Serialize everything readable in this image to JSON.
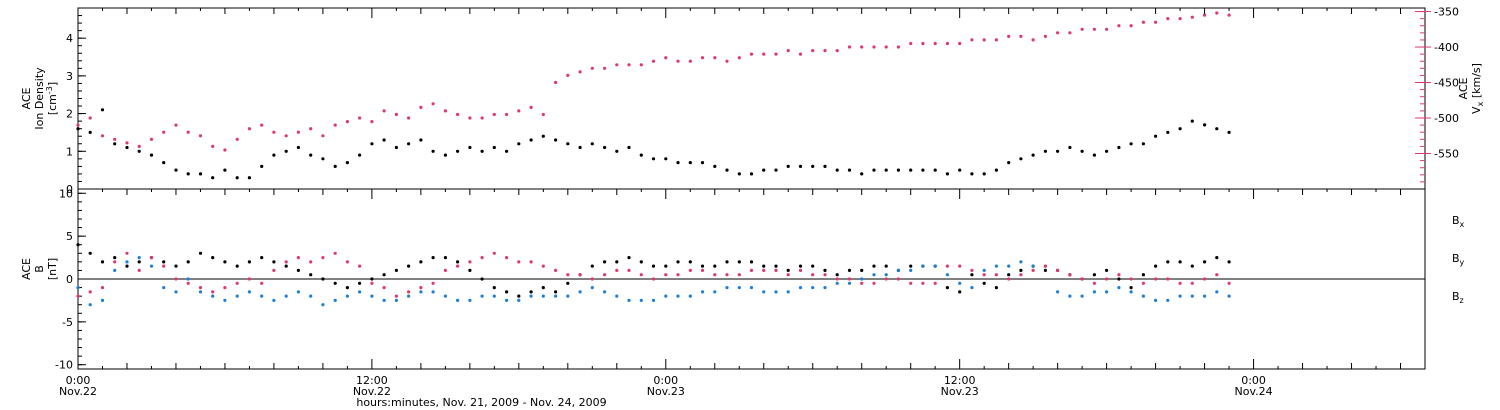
{
  "chart_data": [
    {
      "type": "scatter",
      "panel": "top",
      "left_axis": {
        "title_lines": [
          "ACE",
          "Ion Density"
        ],
        "unit": "cm",
        "unit_exp": "-3",
        "ylim": [
          0,
          4.8
        ],
        "ticks": [
          "0",
          "1",
          "2",
          "3",
          "4"
        ],
        "color": "#000000"
      },
      "right_axis": {
        "title": "ACE",
        "symbol": "V",
        "symbol_sub": "x",
        "unit": "km/s",
        "ylim": [
          -600,
          -345
        ],
        "ticks": [
          "-350",
          "-400",
          "-450",
          "-500",
          "-550"
        ],
        "color": "#e0386a"
      },
      "series": [
        {
          "axis": "left",
          "color": "#000000",
          "x": [
            0,
            0.5,
            1,
            1.5,
            2,
            2.5,
            3,
            3.5,
            4,
            4.5,
            5,
            5.5,
            6,
            6.5,
            7,
            7.5,
            8,
            8.5,
            9,
            9.5,
            10,
            10.5,
            11,
            11.5,
            12,
            12.5,
            13,
            13.5,
            14,
            14.5,
            15,
            15.5,
            16,
            16.5,
            17,
            17.5,
            18,
            18.5,
            19,
            19.5,
            20,
            20.5,
            21,
            21.5,
            22,
            22.5,
            23,
            23.5,
            24,
            24.5,
            25,
            25.5,
            26,
            26.5,
            27,
            27.5,
            28,
            28.5,
            29,
            29.5,
            30,
            30.5,
            31,
            31.5,
            32,
            32.5,
            33,
            33.5,
            34,
            34.5,
            35,
            35.5,
            36,
            36.5,
            37,
            37.5,
            38,
            38.5,
            39,
            39.5,
            40,
            40.5,
            41,
            41.5,
            42,
            42.5,
            43,
            43.5,
            44,
            44.5,
            45,
            45.5,
            46,
            46.5,
            47
          ],
          "y": [
            1.6,
            1.5,
            2.1,
            1.2,
            1.1,
            1.0,
            0.9,
            0.7,
            0.5,
            0.4,
            0.4,
            0.3,
            0.5,
            0.3,
            0.3,
            0.6,
            0.9,
            1.0,
            1.1,
            0.9,
            0.8,
            0.6,
            0.7,
            0.9,
            1.2,
            1.3,
            1.1,
            1.2,
            1.3,
            1.0,
            0.9,
            1.0,
            1.1,
            1.0,
            1.1,
            1.0,
            1.2,
            1.3,
            1.4,
            1.3,
            1.2,
            1.1,
            1.2,
            1.1,
            1.0,
            1.1,
            0.9,
            0.8,
            0.8,
            0.7,
            0.7,
            0.7,
            0.6,
            0.5,
            0.4,
            0.4,
            0.5,
            0.5,
            0.6,
            0.6,
            0.6,
            0.6,
            0.5,
            0.5,
            0.4,
            0.5,
            0.5,
            0.5,
            0.5,
            0.5,
            0.5,
            0.4,
            0.5,
            0.4,
            0.4,
            0.5,
            0.7,
            0.8,
            0.9,
            1.0,
            1.0,
            1.1,
            1.0,
            0.9,
            1.0,
            1.1,
            1.2,
            1.2,
            1.4,
            1.5,
            1.6,
            1.8,
            1.7,
            1.6,
            1.5
          ]
        },
        {
          "axis": "right",
          "color": "#e0386a",
          "x": [
            0,
            0.5,
            1,
            1.5,
            2,
            2.5,
            3,
            3.5,
            4,
            4.5,
            5,
            5.5,
            6,
            6.5,
            7,
            7.5,
            8,
            8.5,
            9,
            9.5,
            10,
            10.5,
            11,
            11.5,
            12,
            12.5,
            13,
            13.5,
            14,
            14.5,
            15,
            15.5,
            16,
            16.5,
            17,
            17.5,
            18,
            18.5,
            19,
            19.5,
            20,
            20.5,
            21,
            21.5,
            22,
            22.5,
            23,
            23.5,
            24,
            24.5,
            25,
            25.5,
            26,
            26.5,
            27,
            27.5,
            28,
            28.5,
            29,
            29.5,
            30,
            30.5,
            31,
            31.5,
            32,
            32.5,
            33,
            33.5,
            34,
            34.5,
            35,
            35.5,
            36,
            36.5,
            37,
            37.5,
            38,
            38.5,
            39,
            39.5,
            40,
            40.5,
            41,
            41.5,
            42,
            42.5,
            43,
            43.5,
            44,
            44.5,
            45,
            45.5,
            46,
            46.5,
            47
          ],
          "y": [
            -510,
            -500,
            -525,
            -530,
            -535,
            -540,
            -530,
            -520,
            -510,
            -520,
            -525,
            -540,
            -545,
            -530,
            -515,
            -510,
            -520,
            -525,
            -520,
            -515,
            -525,
            -510,
            -505,
            -500,
            -505,
            -490,
            -495,
            -500,
            -485,
            -480,
            -490,
            -495,
            -500,
            -500,
            -495,
            -495,
            -490,
            -485,
            -495,
            -450,
            -440,
            -435,
            -430,
            -430,
            -425,
            -425,
            -425,
            -420,
            -415,
            -420,
            -420,
            -415,
            -415,
            -420,
            -415,
            -410,
            -410,
            -410,
            -405,
            -410,
            -405,
            -405,
            -405,
            -400,
            -400,
            -400,
            -400,
            -400,
            -395,
            -395,
            -395,
            -395,
            -395,
            -390,
            -390,
            -390,
            -385,
            -385,
            -390,
            -385,
            -380,
            -380,
            -375,
            -375,
            -375,
            -370,
            -370,
            -365,
            -365,
            -360,
            -360,
            -358,
            -355,
            -352,
            -355
          ]
        }
      ]
    },
    {
      "type": "scatter",
      "panel": "bottom",
      "left_axis": {
        "title_lines": [
          "ACE",
          "B"
        ],
        "unit": "nT",
        "ylim": [
          -10.5,
          10.5
        ],
        "ticks": [
          "10",
          "5",
          "0",
          "-5",
          "-10"
        ],
        "color": "#000000"
      },
      "xlabel": "hours:minutes, Nov. 21, 2009 - Nov. 24, 2009",
      "xlim": [
        0,
        55
      ],
      "x_ticks": [
        {
          "pos": 0,
          "time": "0:00",
          "day": "Nov.22"
        },
        {
          "pos": 12,
          "time": "12:00",
          "day": "Nov.22"
        },
        {
          "pos": 24,
          "time": "0:00",
          "day": "Nov.23"
        },
        {
          "pos": 36,
          "time": "12:00",
          "day": "Nov.23"
        },
        {
          "pos": 48,
          "time": "0:00",
          "day": "Nov.24"
        }
      ],
      "legend": [
        {
          "symbol": "B",
          "sub": "x",
          "color": "#000000"
        },
        {
          "symbol": "B",
          "sub": "y",
          "color": "#1e7fd6"
        },
        {
          "symbol": "B",
          "sub": "z",
          "color": "#e0386a"
        }
      ],
      "series": [
        {
          "name": "Bx",
          "color": "#000000",
          "x": [
            0,
            0.5,
            1,
            1.5,
            2,
            2.5,
            3,
            3.5,
            4,
            4.5,
            5,
            5.5,
            6,
            6.5,
            7,
            7.5,
            8,
            8.5,
            9,
            9.5,
            10,
            10.5,
            11,
            11.5,
            12,
            12.5,
            13,
            13.5,
            14,
            14.5,
            15,
            15.5,
            16,
            16.5,
            17,
            17.5,
            18,
            18.5,
            19,
            19.5,
            20,
            20.5,
            21,
            21.5,
            22,
            22.5,
            23,
            23.5,
            24,
            24.5,
            25,
            25.5,
            26,
            26.5,
            27,
            27.5,
            28,
            28.5,
            29,
            29.5,
            30,
            30.5,
            31,
            31.5,
            32,
            32.5,
            33,
            33.5,
            34,
            34.5,
            35,
            35.5,
            36,
            36.5,
            37,
            37.5,
            38,
            38.5,
            39,
            39.5,
            40,
            40.5,
            41,
            41.5,
            42,
            42.5,
            43,
            43.5,
            44,
            44.5,
            45,
            45.5,
            46,
            46.5,
            47
          ],
          "y": [
            4,
            3,
            2,
            2.5,
            1.5,
            2,
            2.5,
            2,
            1.5,
            2,
            3,
            2.5,
            2,
            1.5,
            2,
            2.5,
            2,
            1.5,
            1,
            0.5,
            0,
            -0.5,
            -1,
            -0.5,
            0,
            0.5,
            1,
            1.5,
            2,
            2.5,
            2.5,
            2,
            1,
            0,
            -1,
            -1.5,
            -2,
            -1.5,
            -1,
            -1.5,
            -0.5,
            0.5,
            1.5,
            2,
            2,
            2.5,
            2,
            1.5,
            1.5,
            2,
            2,
            1.5,
            1.5,
            2,
            2,
            2,
            1.5,
            1.5,
            1,
            1.5,
            1.5,
            1,
            0.5,
            1,
            1,
            1.5,
            1.5,
            1,
            1.5,
            1.5,
            1.5,
            -1,
            -1.5,
            0.5,
            -0.5,
            -1,
            0.5,
            1,
            1.5,
            1,
            1,
            0.5,
            0,
            0.5,
            1,
            0,
            -1,
            0.5,
            1.5,
            2,
            2,
            1.5,
            2,
            2.5,
            2
          ]
        },
        {
          "name": "By",
          "color": "#1e7fd6",
          "x": [
            0,
            0.5,
            1,
            1.5,
            2,
            2.5,
            3,
            3.5,
            4,
            4.5,
            5,
            5.5,
            6,
            6.5,
            7,
            7.5,
            8,
            8.5,
            9,
            9.5,
            10,
            10.5,
            11,
            11.5,
            12,
            12.5,
            13,
            13.5,
            14,
            14.5,
            15,
            15.5,
            16,
            16.5,
            17,
            17.5,
            18,
            18.5,
            19,
            19.5,
            20,
            20.5,
            21,
            21.5,
            22,
            22.5,
            23,
            23.5,
            24,
            24.5,
            25,
            25.5,
            26,
            26.5,
            27,
            27.5,
            28,
            28.5,
            29,
            29.5,
            30,
            30.5,
            31,
            31.5,
            32,
            32.5,
            33,
            33.5,
            34,
            34.5,
            35,
            35.5,
            36,
            36.5,
            37,
            37.5,
            38,
            38.5,
            39,
            39.5,
            40,
            40.5,
            41,
            41.5,
            42,
            42.5,
            43,
            43.5,
            44,
            44.5,
            45,
            45.5,
            46,
            46.5,
            47
          ],
          "y": [
            -1,
            -3,
            -2.5,
            1,
            2,
            2.5,
            1.5,
            -1,
            -1.5,
            0,
            -1.5,
            -2,
            -2.5,
            -2,
            -1.5,
            -2,
            -2.5,
            -2,
            -1.5,
            -2,
            -3,
            -2.5,
            -2,
            -1.5,
            -2,
            -2.5,
            -2.5,
            -2,
            -1.5,
            -1.5,
            -2,
            -2.5,
            -2.5,
            -2,
            -2,
            -2.5,
            -2.5,
            -2,
            -2,
            -2,
            -2,
            -1.5,
            -1,
            -1.5,
            -2,
            -2.5,
            -2.5,
            -2.5,
            -2,
            -2,
            -2,
            -1.5,
            -1.5,
            -1,
            -1,
            -1,
            -1.5,
            -1.5,
            -1.5,
            -1,
            -1,
            -1,
            -0.5,
            -0.5,
            0,
            0.5,
            0.5,
            1,
            1,
            1.5,
            1.5,
            0.5,
            -0.5,
            -1,
            1,
            1.5,
            1.5,
            2,
            1.5,
            1.5,
            -1.5,
            -2,
            -2,
            -1.5,
            -1.5,
            -1,
            -1.5,
            -2,
            -2.5,
            -2.5,
            -2,
            -2,
            -2,
            -1.5,
            -2
          ]
        },
        {
          "name": "Bz",
          "color": "#e0386a",
          "x": [
            0,
            0.5,
            1,
            1.5,
            2,
            2.5,
            3,
            3.5,
            4,
            4.5,
            5,
            5.5,
            6,
            6.5,
            7,
            7.5,
            8,
            8.5,
            9,
            9.5,
            10,
            10.5,
            11,
            11.5,
            12,
            12.5,
            13,
            13.5,
            14,
            14.5,
            15,
            15.5,
            16,
            16.5,
            17,
            17.5,
            18,
            18.5,
            19,
            19.5,
            20,
            20.5,
            21,
            21.5,
            22,
            22.5,
            23,
            23.5,
            24,
            24.5,
            25,
            25.5,
            26,
            26.5,
            27,
            27.5,
            28,
            28.5,
            29,
            29.5,
            30,
            30.5,
            31,
            31.5,
            32,
            32.5,
            33,
            33.5,
            34,
            34.5,
            35,
            35.5,
            36,
            36.5,
            37,
            37.5,
            38,
            38.5,
            39,
            39.5,
            40,
            40.5,
            41,
            41.5,
            42,
            42.5,
            43,
            43.5,
            44,
            44.5,
            45,
            45.5,
            46,
            46.5,
            47
          ],
          "y": [
            -2,
            -1.5,
            -1,
            2,
            3,
            1,
            2.5,
            1.5,
            0,
            -0.5,
            -1,
            -1.5,
            -1,
            -0.5,
            0,
            -0.5,
            1,
            2,
            2.5,
            2,
            2.5,
            3,
            2,
            1.5,
            -0.5,
            -1,
            -2,
            -1.5,
            -1,
            -0.5,
            1,
            1.5,
            2,
            2.5,
            3,
            2.5,
            2,
            2,
            1.5,
            1,
            0.5,
            0.5,
            0,
            0.5,
            1,
            1,
            0.5,
            0,
            0.5,
            0.5,
            1,
            1,
            0.5,
            0.5,
            0.5,
            1,
            1,
            1,
            0.5,
            1,
            0.5,
            0.5,
            0,
            0,
            -0.5,
            -0.5,
            0,
            0,
            -0.5,
            -0.5,
            -0.5,
            1.5,
            1.5,
            1,
            0.5,
            0.5,
            0,
            0.5,
            1,
            1.5,
            1,
            0.5,
            0,
            -0.5,
            0,
            0.5,
            0,
            -0.5,
            0,
            0,
            -0.5,
            -0.5,
            0,
            0.5,
            -0.5
          ]
        }
      ]
    }
  ]
}
